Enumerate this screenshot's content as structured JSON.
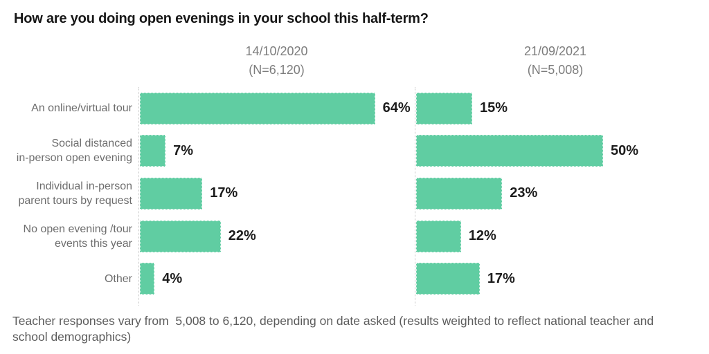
{
  "title": "How are you doing open evenings in your school this half-term?",
  "chart_data": {
    "type": "bar",
    "orientation": "horizontal",
    "bar_color": "#60cda2",
    "value_suffix": "%",
    "xlim": [
      0,
      75
    ],
    "grid": "dotted-baseline-only",
    "categories": [
      "An online/virtual tour",
      "Social distanced\nin-person open evening",
      "Individual in-person\nparent tours by request",
      "No open evening /tour\nevents this year",
      "Other"
    ],
    "series": [
      {
        "name": "14/10/2020",
        "n_label": "(N=6,120)",
        "values": [
          64,
          7,
          17,
          22,
          4
        ]
      },
      {
        "name": "21/09/2021",
        "n_label": "(N=5,008)",
        "values": [
          15,
          50,
          23,
          12,
          17
        ]
      }
    ]
  },
  "footnote": "Teacher responses vary from  5,008 to 6,120, depending on date asked (results weighted to reflect national teacher and\nschool demographics)"
}
